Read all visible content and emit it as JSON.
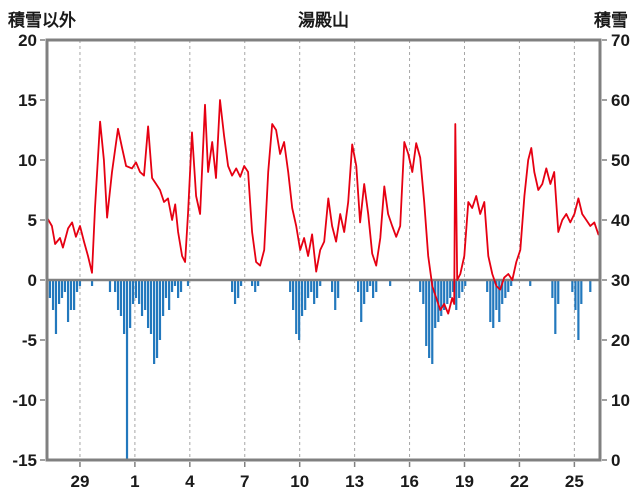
{
  "header": {
    "left_axis_title": "積雪以外",
    "chart_title": "湯殿山",
    "right_axis_title": "積雪"
  },
  "chart_data": {
    "type": "line+bar",
    "title": "湯殿山",
    "left_axis": {
      "label": "積雪以外",
      "min": -15,
      "max": 20,
      "ticks": [
        20,
        15,
        10,
        5,
        0,
        -5,
        -10,
        -15
      ]
    },
    "right_axis": {
      "label": "積雪",
      "min": 0,
      "max": 70,
      "ticks": [
        70,
        60,
        50,
        40,
        30,
        20,
        10,
        0
      ]
    },
    "x_axis": {
      "min": 0,
      "max": 30.2,
      "tick_labels": [
        "29",
        "1",
        "4",
        "7",
        "10",
        "13",
        "16",
        "19",
        "22",
        "25"
      ],
      "tick_positions": [
        1.8,
        4.8,
        7.8,
        10.8,
        13.8,
        16.8,
        19.8,
        22.8,
        25.8,
        28.8
      ]
    },
    "grid": "vertical-dashed",
    "legend": "none",
    "zero_line": 0,
    "colors": {
      "line": "#e60012",
      "bars": "#2278bd",
      "frame": "#808080",
      "grid": "#a6a6a6",
      "text": "#1a1a1a"
    },
    "series": [
      {
        "name": "red-line-left-axis",
        "type": "line",
        "color": "#e60012",
        "points": [
          [
            0,
            5.2
          ],
          [
            0.27,
            4.5
          ],
          [
            0.44,
            3
          ],
          [
            0.71,
            3.5
          ],
          [
            0.87,
            2.7
          ],
          [
            1.15,
            4.3
          ],
          [
            1.37,
            4.8
          ],
          [
            1.58,
            3.6
          ],
          [
            1.8,
            4.5
          ],
          [
            2.02,
            3.2
          ],
          [
            2.24,
            2
          ],
          [
            2.46,
            0.6
          ],
          [
            2.62,
            6
          ],
          [
            2.9,
            13.2
          ],
          [
            3.11,
            10
          ],
          [
            3.28,
            5.2
          ],
          [
            3.55,
            9
          ],
          [
            3.88,
            12.6
          ],
          [
            4.1,
            11
          ],
          [
            4.32,
            9.5
          ],
          [
            4.64,
            9.3
          ],
          [
            4.86,
            9.8
          ],
          [
            5.08,
            9
          ],
          [
            5.3,
            8.7
          ],
          [
            5.52,
            12.8
          ],
          [
            5.74,
            8.5
          ],
          [
            5.96,
            8
          ],
          [
            6.17,
            7.5
          ],
          [
            6.39,
            6.5
          ],
          [
            6.61,
            6.8
          ],
          [
            6.83,
            5
          ],
          [
            7,
            6.3
          ],
          [
            7.16,
            4
          ],
          [
            7.38,
            2
          ],
          [
            7.54,
            1.5
          ],
          [
            7.7,
            5.5
          ],
          [
            7.92,
            12.3
          ],
          [
            8.14,
            7
          ],
          [
            8.36,
            5.5
          ],
          [
            8.63,
            14.6
          ],
          [
            8.8,
            9
          ],
          [
            9.02,
            11.5
          ],
          [
            9.23,
            8.5
          ],
          [
            9.45,
            15
          ],
          [
            9.67,
            12
          ],
          [
            9.89,
            9.5
          ],
          [
            10.11,
            8.7
          ],
          [
            10.33,
            9.3
          ],
          [
            10.55,
            8.6
          ],
          [
            10.77,
            9.5
          ],
          [
            10.98,
            9
          ],
          [
            11.2,
            4
          ],
          [
            11.42,
            1.5
          ],
          [
            11.64,
            1.2
          ],
          [
            11.86,
            2.5
          ],
          [
            12.08,
            9
          ],
          [
            12.3,
            13
          ],
          [
            12.51,
            12.5
          ],
          [
            12.73,
            10.5
          ],
          [
            12.95,
            11.5
          ],
          [
            13.17,
            9
          ],
          [
            13.39,
            6
          ],
          [
            13.61,
            4.5
          ],
          [
            13.83,
            2.5
          ],
          [
            14.04,
            3.5
          ],
          [
            14.26,
            2
          ],
          [
            14.48,
            3.8
          ],
          [
            14.7,
            0.7
          ],
          [
            14.92,
            2.5
          ],
          [
            15.14,
            3.2
          ],
          [
            15.36,
            6.8
          ],
          [
            15.57,
            4.5
          ],
          [
            15.79,
            3.2
          ],
          [
            16.01,
            5.5
          ],
          [
            16.23,
            4
          ],
          [
            16.45,
            6.5
          ],
          [
            16.67,
            11.3
          ],
          [
            16.89,
            9.5
          ],
          [
            17.1,
            4.8
          ],
          [
            17.32,
            8
          ],
          [
            17.54,
            5.5
          ],
          [
            17.76,
            2.2
          ],
          [
            17.98,
            1.2
          ],
          [
            18.2,
            3.5
          ],
          [
            18.42,
            7.8
          ],
          [
            18.63,
            5.5
          ],
          [
            18.85,
            4.5
          ],
          [
            19.07,
            3.6
          ],
          [
            19.29,
            4.5
          ],
          [
            19.51,
            11.5
          ],
          [
            19.73,
            10.5
          ],
          [
            19.95,
            9
          ],
          [
            20.16,
            11.4
          ],
          [
            20.38,
            10.2
          ],
          [
            20.6,
            6.5
          ],
          [
            20.82,
            2
          ],
          [
            21.04,
            -0.5
          ],
          [
            21.26,
            -1.5
          ],
          [
            21.48,
            -2.5
          ],
          [
            21.69,
            -2
          ],
          [
            21.91,
            -2.8
          ],
          [
            22.13,
            -1.5
          ],
          [
            22.24,
            -2
          ],
          [
            22.3,
            13
          ],
          [
            22.4,
            0
          ],
          [
            22.57,
            0.5
          ],
          [
            22.79,
            2
          ],
          [
            23.01,
            6.5
          ],
          [
            23.22,
            6
          ],
          [
            23.44,
            7
          ],
          [
            23.66,
            5.5
          ],
          [
            23.88,
            6.5
          ],
          [
            24.1,
            2
          ],
          [
            24.32,
            0.5
          ],
          [
            24.54,
            -0.5
          ],
          [
            24.75,
            -0.8
          ],
          [
            24.97,
            0.2
          ],
          [
            25.19,
            0.5
          ],
          [
            25.41,
            0
          ],
          [
            25.63,
            1.5
          ],
          [
            25.85,
            2.5
          ],
          [
            26.07,
            7
          ],
          [
            26.28,
            10
          ],
          [
            26.45,
            11
          ],
          [
            26.61,
            9
          ],
          [
            26.83,
            7.5
          ],
          [
            27.05,
            8
          ],
          [
            27.27,
            9.3
          ],
          [
            27.49,
            8
          ],
          [
            27.7,
            9
          ],
          [
            27.92,
            4
          ],
          [
            28.14,
            5
          ],
          [
            28.36,
            5.5
          ],
          [
            28.58,
            4.8
          ],
          [
            28.8,
            5.5
          ],
          [
            29.02,
            6.8
          ],
          [
            29.23,
            5.5
          ],
          [
            29.45,
            5
          ],
          [
            29.67,
            4.5
          ],
          [
            29.89,
            4.8
          ],
          [
            30.11,
            3.8
          ]
        ]
      },
      {
        "name": "blue-bars-left-axis",
        "type": "bar",
        "color": "#2278bd",
        "points": [
          [
            0.16,
            -1.5
          ],
          [
            0.33,
            -2.5
          ],
          [
            0.49,
            -4.5
          ],
          [
            0.66,
            -2
          ],
          [
            0.82,
            -1.5
          ],
          [
            0.98,
            -1
          ],
          [
            1.15,
            -3.5
          ],
          [
            1.31,
            -2.5
          ],
          [
            1.48,
            -2.5
          ],
          [
            1.64,
            -1
          ],
          [
            1.8,
            -0.5
          ],
          [
            2.46,
            -0.5
          ],
          [
            3.44,
            -1
          ],
          [
            3.72,
            -1
          ],
          [
            3.88,
            -2.5
          ],
          [
            4.04,
            -3
          ],
          [
            4.21,
            -4.5
          ],
          [
            4.37,
            -15
          ],
          [
            4.54,
            -4
          ],
          [
            4.7,
            -2
          ],
          [
            4.86,
            -1.5
          ],
          [
            5.03,
            -2
          ],
          [
            5.19,
            -3
          ],
          [
            5.36,
            -2.5
          ],
          [
            5.52,
            -4
          ],
          [
            5.68,
            -4.5
          ],
          [
            5.85,
            -7
          ],
          [
            6.01,
            -6.5
          ],
          [
            6.17,
            -5
          ],
          [
            6.34,
            -3
          ],
          [
            6.5,
            -1.5
          ],
          [
            6.67,
            -2.5
          ],
          [
            6.83,
            -1
          ],
          [
            6.99,
            -0.5
          ],
          [
            7.16,
            -1.5
          ],
          [
            7.32,
            -1
          ],
          [
            7.7,
            -0.5
          ],
          [
            10.11,
            -1
          ],
          [
            10.27,
            -2
          ],
          [
            10.44,
            -1.5
          ],
          [
            10.6,
            -0.5
          ],
          [
            11.2,
            -0.5
          ],
          [
            11.37,
            -1
          ],
          [
            11.53,
            -0.5
          ],
          [
            13.28,
            -1
          ],
          [
            13.44,
            -2.5
          ],
          [
            13.61,
            -4.5
          ],
          [
            13.77,
            -5
          ],
          [
            13.93,
            -3
          ],
          [
            14.1,
            -2.5
          ],
          [
            14.26,
            -1.5
          ],
          [
            14.43,
            -1
          ],
          [
            14.59,
            -2
          ],
          [
            14.75,
            -1.5
          ],
          [
            14.92,
            -0.5
          ],
          [
            15.57,
            -1
          ],
          [
            15.74,
            -2.5
          ],
          [
            15.9,
            -1.5
          ],
          [
            16.99,
            -1
          ],
          [
            17.16,
            -3.5
          ],
          [
            17.32,
            -2
          ],
          [
            17.49,
            -1
          ],
          [
            17.65,
            -0.5
          ],
          [
            17.81,
            -1.5
          ],
          [
            17.98,
            -1
          ],
          [
            18.74,
            -0.5
          ],
          [
            20.38,
            -1
          ],
          [
            20.55,
            -2
          ],
          [
            20.71,
            -5.5
          ],
          [
            20.87,
            -6.5
          ],
          [
            21.04,
            -7
          ],
          [
            21.2,
            -4
          ],
          [
            21.37,
            -3.5
          ],
          [
            21.53,
            -3
          ],
          [
            21.69,
            -2.5
          ],
          [
            21.86,
            -2
          ],
          [
            22.02,
            -1.5
          ],
          [
            22.18,
            -1
          ],
          [
            22.35,
            -2.5
          ],
          [
            22.51,
            -1.5
          ],
          [
            22.68,
            -1
          ],
          [
            22.84,
            -0.5
          ],
          [
            24.04,
            -1
          ],
          [
            24.21,
            -3.5
          ],
          [
            24.37,
            -4
          ],
          [
            24.54,
            -2.5
          ],
          [
            24.7,
            -3.5
          ],
          [
            24.86,
            -2
          ],
          [
            25.03,
            -1.5
          ],
          [
            25.19,
            -1
          ],
          [
            25.35,
            -0.5
          ],
          [
            26.39,
            -0.5
          ],
          [
            27.6,
            -1.5
          ],
          [
            27.76,
            -4.5
          ],
          [
            27.92,
            -2
          ],
          [
            28.69,
            -1
          ],
          [
            28.86,
            -2.5
          ],
          [
            29.02,
            -5
          ],
          [
            29.18,
            -2
          ],
          [
            29.67,
            -1
          ]
        ]
      }
    ]
  }
}
